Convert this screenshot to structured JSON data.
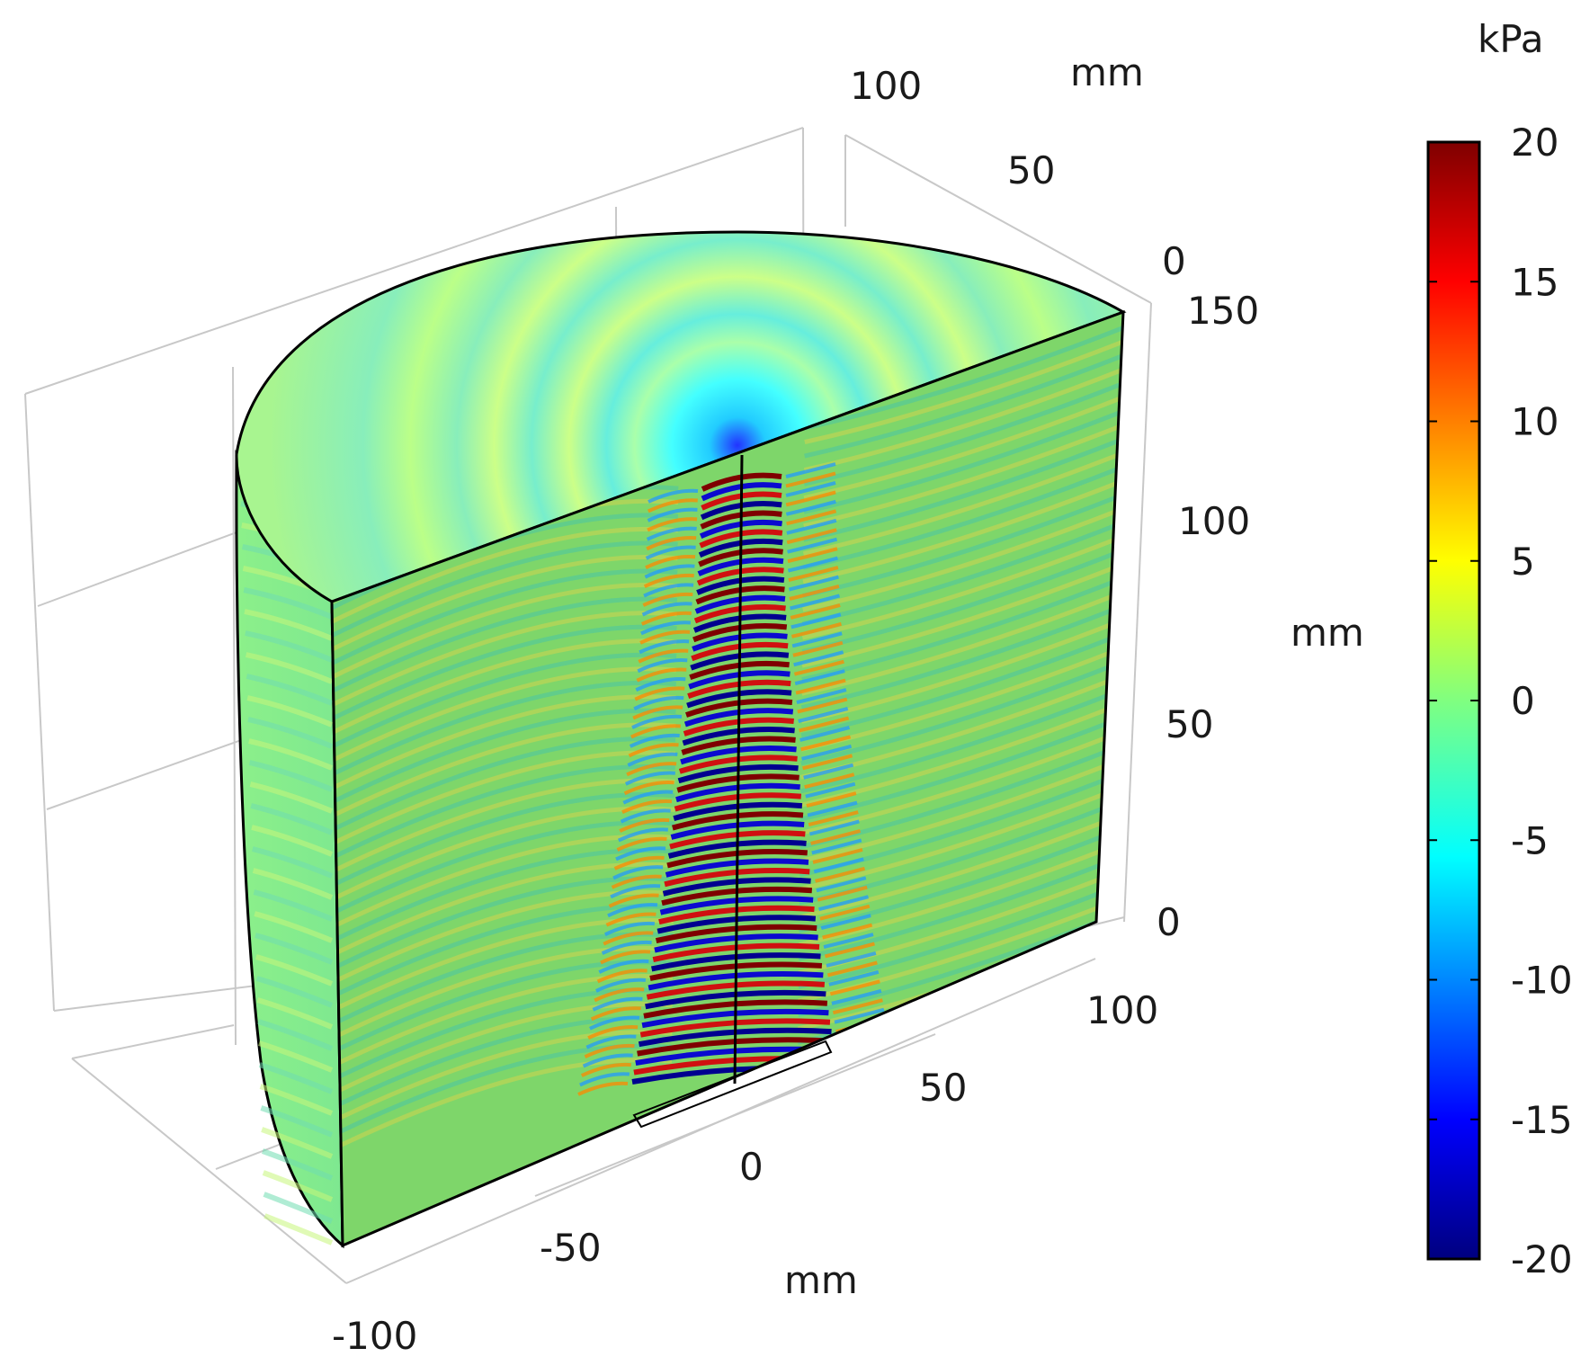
{
  "chart_data": {
    "type": "heatmap",
    "subtype": "3d-cutaway-cylinder-acoustic-pressure-field",
    "colorbar": {
      "unit": "kPa",
      "range": [
        -20,
        20
      ],
      "ticks": [
        "20",
        "15",
        "10",
        "5",
        "0",
        "-5",
        "-10",
        "-15",
        "-20"
      ],
      "colormap": [
        "#00007f",
        "#0000ff",
        "#00ffff",
        "#80ff80",
        "#ffff00",
        "#ff0000",
        "#7f0000"
      ]
    },
    "axes": {
      "x": {
        "unit": "mm",
        "ticks": [
          "-100",
          "-50",
          "0",
          "50",
          "100"
        ]
      },
      "y": {
        "unit": "mm",
        "ticks": [
          "0",
          "50",
          "100"
        ]
      },
      "z": {
        "unit": "mm",
        "ticks": [
          "0",
          "50",
          "100",
          "150"
        ]
      }
    },
    "grid": true,
    "field_range_shown_kPa": [
      -20,
      20
    ]
  }
}
